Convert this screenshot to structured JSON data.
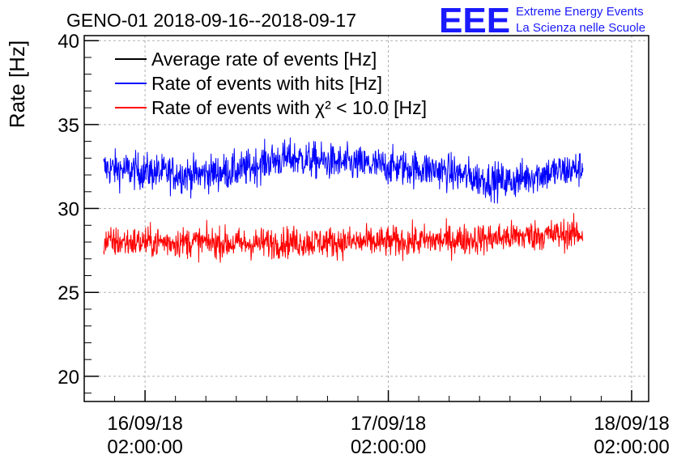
{
  "title": "GENO-01 2018-09-16--2018-09-17",
  "logo": {
    "mark": "EEE",
    "line1": "Extreme Energy Events",
    "line2": "La Scienza nelle Scuole",
    "color": "#1a1aff"
  },
  "chart_data": {
    "type": "line",
    "title": "GENO-01 2018-09-16--2018-09-17",
    "ylabel": "Rate [Hz]",
    "xlabel": "",
    "ylim": [
      18.5,
      40.3
    ],
    "xlim": [
      -0.25,
      2.07
    ],
    "grid": true,
    "legend_position": "top-left",
    "yticks": [
      {
        "value": 20,
        "label": "20"
      },
      {
        "value": 25,
        "label": "25"
      },
      {
        "value": 30,
        "label": "30"
      },
      {
        "value": 35,
        "label": "35"
      },
      {
        "value": 40,
        "label": "40"
      }
    ],
    "xticks": [
      {
        "value": 0,
        "line1": "16/09/18",
        "line2": "02:00:00"
      },
      {
        "value": 1,
        "line1": "17/09/18",
        "line2": "02:00:00"
      },
      {
        "value": 2,
        "line1": "18/09/18",
        "line2": "02:00:00"
      }
    ],
    "x_range": [
      -0.17,
      1.8
    ],
    "series": [
      {
        "name": "Average rate of events [Hz]",
        "color": "#000000",
        "values": []
      },
      {
        "name": "Rate of events with hits [Hz]",
        "color": "#0000ff",
        "x": [
          -0.17,
          0.0,
          0.2,
          0.4,
          0.5,
          0.6,
          0.8,
          1.0,
          1.2,
          1.3,
          1.4,
          1.5,
          1.6,
          1.8
        ],
        "values": [
          32.4,
          32.2,
          32.0,
          32.3,
          32.8,
          33.0,
          32.7,
          32.5,
          32.3,
          32.0,
          31.7,
          31.6,
          32.0,
          32.4
        ],
        "spread": 1.0
      },
      {
        "name": "Rate of events with χ² < 10.0 [Hz]",
        "color": "#ff0000",
        "x": [
          -0.17,
          0.0,
          0.2,
          0.4,
          0.6,
          0.8,
          1.0,
          1.2,
          1.4,
          1.6,
          1.8
        ],
        "values": [
          28.0,
          28.0,
          28.0,
          27.9,
          28.0,
          28.0,
          28.0,
          28.1,
          28.2,
          28.4,
          28.5
        ],
        "spread": 0.85
      }
    ]
  }
}
